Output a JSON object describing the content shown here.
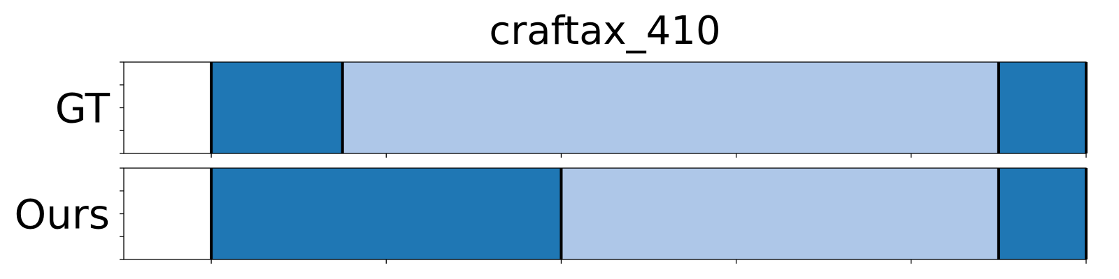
{
  "chart_data": {
    "type": "segmentation-timeline",
    "title": "craftax_410",
    "xlim": [
      -1,
      10
    ],
    "xticks": [
      0,
      2,
      4,
      6,
      8,
      10
    ],
    "colors": {
      "dark": "#1f77b4",
      "light": "#aec7e8",
      "boundary": "#000000"
    },
    "rows": [
      {
        "label": "GT",
        "segments": [
          {
            "start": 0,
            "end": 1.5,
            "color": "dark"
          },
          {
            "start": 1.5,
            "end": 9.0,
            "color": "light"
          },
          {
            "start": 9.0,
            "end": 10.0,
            "color": "dark"
          }
        ]
      },
      {
        "label": "Ours",
        "segments": [
          {
            "start": 0,
            "end": 4.0,
            "color": "dark"
          },
          {
            "start": 4.0,
            "end": 9.0,
            "color": "light"
          },
          {
            "start": 9.0,
            "end": 10.0,
            "color": "dark"
          }
        ]
      }
    ]
  }
}
